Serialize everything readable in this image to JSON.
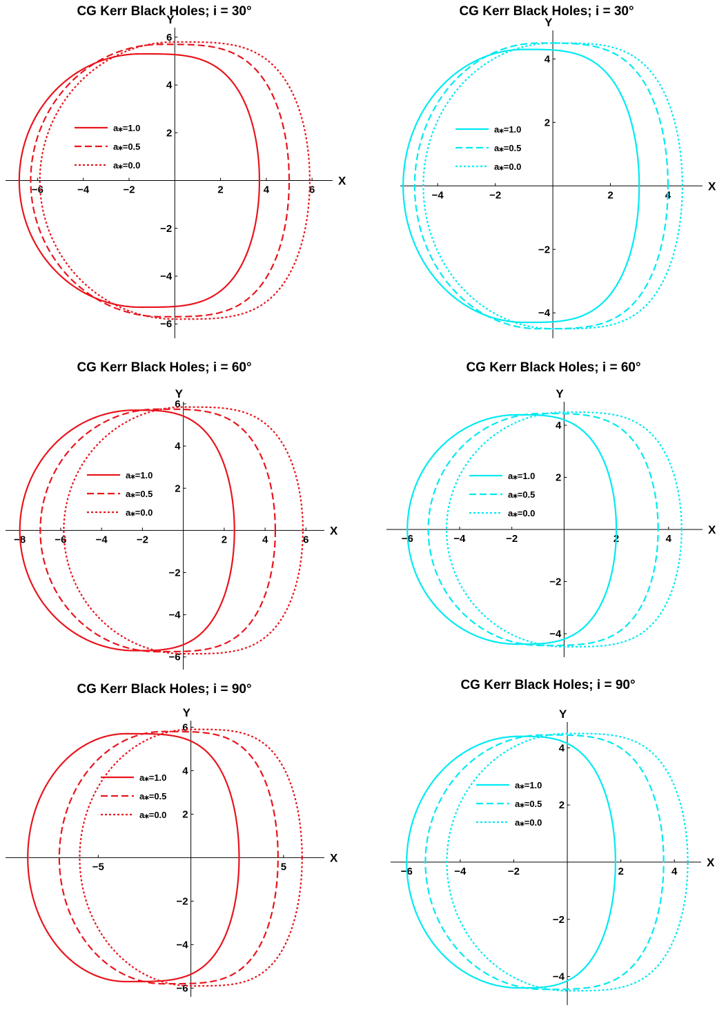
{
  "figure": {
    "layout": "3 rows x 2 columns",
    "colors": {
      "left": "#e8141c",
      "right": "#00eaf2",
      "axis": "#000000"
    }
  },
  "chart_data": [
    {
      "type": "line",
      "title": "CG Kerr Black Holes; i = 30°",
      "xlabel": "X",
      "ylabel": "Y",
      "xlim": [
        -7.4,
        6.9
      ],
      "ylim": [
        -6.6,
        6.4
      ],
      "xticks": [
        -6,
        -4,
        -2,
        2,
        4,
        6
      ],
      "yticks": [
        -6,
        -4,
        -2,
        2,
        4,
        6
      ],
      "xtick_labels": [
        "−6",
        "−4",
        "−2",
        "2",
        "4",
        "6"
      ],
      "ytick_labels": [
        "−6",
        "−4",
        "−2",
        "2",
        "4",
        "6"
      ],
      "color": "#e8141c",
      "legend_position": "left",
      "series": [
        {
          "name": "a⁎=1.0",
          "style": "solid",
          "shape": {
            "xmin": -6.8,
            "xmax": 3.7,
            "ymax": 5.3,
            "xtop": -1.5,
            "xcross": 0.0,
            "ycross": 5.1
          }
        },
        {
          "name": "a⁎=0.5",
          "style": "dashed",
          "shape": {
            "xmin": -6.3,
            "xmax": 5.0,
            "ymax": 5.7,
            "xtop": -0.6,
            "xcross": 0.0,
            "ycross": 5.65
          }
        },
        {
          "name": "a⁎=0.0",
          "style": "dotted",
          "shape": {
            "xmin": -5.9,
            "xmax": 5.9,
            "ymax": 5.8,
            "xtop": 0.0,
            "xcross": 0.0,
            "ycross": 5.8
          }
        }
      ]
    },
    {
      "type": "line",
      "title": "CG Kerr Black Holes; i = 30°",
      "xlabel": "X",
      "ylabel": "Y",
      "xlim": [
        -5.3,
        5.2
      ],
      "ylim": [
        -4.8,
        4.9
      ],
      "xticks": [
        -4,
        -2,
        2,
        4
      ],
      "yticks": [
        -4,
        -2,
        2,
        4
      ],
      "xtick_labels": [
        "−4",
        "−2",
        "2",
        "4"
      ],
      "ytick_labels": [
        "−4",
        "−2",
        "2",
        "4"
      ],
      "color": "#00eaf2",
      "legend_position": "left",
      "series": [
        {
          "name": "a⁎=1.0",
          "style": "solid",
          "shape": {
            "xmin": -5.2,
            "xmax": 3.0,
            "ymax": 4.3,
            "xtop": -1.0,
            "xcross": 0.0,
            "ycross": 4.15
          }
        },
        {
          "name": "a⁎=0.5",
          "style": "dashed",
          "shape": {
            "xmin": -4.8,
            "xmax": 4.0,
            "ymax": 4.5,
            "xtop": -0.5,
            "xcross": 0.0,
            "ycross": 4.45
          }
        },
        {
          "name": "a⁎=0.0",
          "style": "dotted",
          "shape": {
            "xmin": -4.5,
            "xmax": 4.5,
            "ymax": 4.5,
            "xtop": 0.0,
            "xcross": 0.0,
            "ycross": 4.5
          }
        }
      ]
    },
    {
      "type": "line",
      "title": "CG Kerr Black Holes; i = 60°",
      "xlabel": "X",
      "ylabel": "Y",
      "xlim": [
        -8.7,
        6.9
      ],
      "ylim": [
        -6.6,
        6.1
      ],
      "xticks": [
        -8,
        -6,
        -4,
        -2,
        2,
        4,
        6
      ],
      "yticks": [
        -6,
        -4,
        -2,
        2,
        4,
        6
      ],
      "xtick_labels": [
        "−8",
        "−6",
        "−4",
        "−2",
        "2",
        "4",
        "6"
      ],
      "ytick_labels": [
        "−6",
        "−4",
        "−2",
        "2",
        "4",
        "6"
      ],
      "color": "#e8141c",
      "legend_position": "left",
      "series": [
        {
          "name": "a⁎=1.0",
          "style": "solid",
          "shape": {
            "xmin": -8.0,
            "xmax": 2.5,
            "ymax": 5.7,
            "xtop": -2.4,
            "xcross": 0.0,
            "ycross": 5.2
          }
        },
        {
          "name": "a⁎=0.5",
          "style": "dashed",
          "shape": {
            "xmin": -7.0,
            "xmax": 4.5,
            "ymax": 5.75,
            "xtop": -1.3,
            "xcross": 0.0,
            "ycross": 5.65
          }
        },
        {
          "name": "a⁎=0.0",
          "style": "dotted",
          "shape": {
            "xmin": -5.85,
            "xmax": 5.85,
            "ymax": 5.85,
            "xtop": 0.0,
            "xcross": 0.0,
            "ycross": 5.85
          }
        }
      ]
    },
    {
      "type": "line",
      "title": "CG Kerr Black Holes; i = 60°",
      "xlabel": "X",
      "ylabel": "Y",
      "xlim": [
        -6.8,
        5.3
      ],
      "ylim": [
        -4.9,
        4.9
      ],
      "xticks": [
        -6,
        -4,
        -2,
        2,
        4
      ],
      "yticks": [
        -4,
        -2,
        2,
        4
      ],
      "xtick_labels": [
        "−6",
        "−4",
        "−2",
        "2",
        "4"
      ],
      "ytick_labels": [
        "−4",
        "−2",
        "2",
        "4"
      ],
      "color": "#00eaf2",
      "legend_position": "left",
      "series": [
        {
          "name": "a⁎=1.0",
          "style": "solid",
          "shape": {
            "xmin": -6.0,
            "xmax": 2.0,
            "ymax": 4.4,
            "xtop": -1.8,
            "xcross": 0.0,
            "ycross": 4.0
          }
        },
        {
          "name": "a⁎=0.5",
          "style": "dashed",
          "shape": {
            "xmin": -5.2,
            "xmax": 3.6,
            "ymax": 4.45,
            "xtop": -0.9,
            "xcross": 0.0,
            "ycross": 4.35
          }
        },
        {
          "name": "a⁎=0.0",
          "style": "dotted",
          "shape": {
            "xmin": -4.5,
            "xmax": 4.5,
            "ymax": 4.5,
            "xtop": 0.0,
            "xcross": 0.0,
            "ycross": 4.5
          }
        }
      ]
    },
    {
      "type": "line",
      "title": "CG Kerr Black Holes; i = 90°",
      "xlabel": "X",
      "ylabel": "Y",
      "xlim": [
        -10.0,
        7.2
      ],
      "ylim": [
        -6.4,
        6.3
      ],
      "xticks": [
        -5,
        5
      ],
      "yticks": [
        -6,
        -4,
        -2,
        2,
        4,
        6
      ],
      "xtick_labels": [
        "−5",
        "5"
      ],
      "ytick_labels": [
        "−6",
        "−4",
        "−2",
        "2",
        "4",
        "6"
      ],
      "color": "#e8141c",
      "legend_position": "center",
      "series": [
        {
          "name": "a⁎=1.0",
          "style": "solid",
          "shape": {
            "xmin": -8.8,
            "xmax": 2.6,
            "ymax": 5.7,
            "xtop": -3.5,
            "xcross": 0.0,
            "ycross": 5.0
          }
        },
        {
          "name": "a⁎=0.5",
          "style": "dashed",
          "shape": {
            "xmin": -7.1,
            "xmax": 4.7,
            "ymax": 5.8,
            "xtop": -1.5,
            "xcross": 0.0,
            "ycross": 5.65
          }
        },
        {
          "name": "a⁎=0.0",
          "style": "dotted",
          "shape": {
            "xmin": -6.0,
            "xmax": 6.0,
            "ymax": 5.9,
            "xtop": 0.0,
            "xcross": 0.0,
            "ycross": 5.9
          }
        }
      ]
    },
    {
      "type": "line",
      "title": "CG Kerr Black Holes; i = 90°",
      "xlabel": "X",
      "ylabel": "Y",
      "xlim": [
        -6.6,
        5.0
      ],
      "ylim": [
        -5.0,
        4.9
      ],
      "xticks": [
        -6,
        -4,
        -2,
        2,
        4
      ],
      "yticks": [
        -4,
        -2,
        2,
        4
      ],
      "xtick_labels": [
        "−6",
        "−4",
        "−2",
        "2",
        "4"
      ],
      "ytick_labels": [
        "−4",
        "−2",
        "2",
        "4"
      ],
      "color": "#00eaf2",
      "legend_position": "left",
      "series": [
        {
          "name": "a⁎=1.0",
          "style": "solid",
          "shape": {
            "xmin": -6.0,
            "xmax": 1.8,
            "ymax": 4.4,
            "xtop": -1.8,
            "xcross": 0.0,
            "ycross": 4.2
          }
        },
        {
          "name": "a⁎=0.5",
          "style": "dashed",
          "shape": {
            "xmin": -5.3,
            "xmax": 3.6,
            "ymax": 4.45,
            "xtop": -0.9,
            "xcross": 0.0,
            "ycross": 4.35
          }
        },
        {
          "name": "a⁎=0.0",
          "style": "dotted",
          "shape": {
            "xmin": -4.5,
            "xmax": 4.5,
            "ymax": 4.5,
            "xtop": 0.0,
            "xcross": 0.0,
            "ycross": 4.5
          }
        }
      ]
    }
  ]
}
